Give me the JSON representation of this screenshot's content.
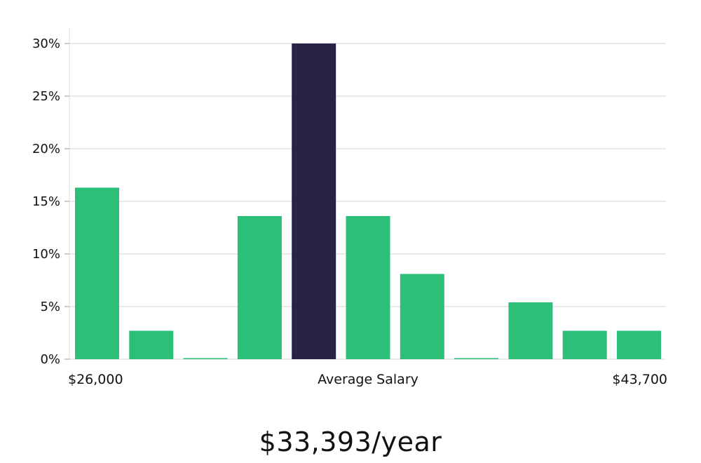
{
  "chart_data": {
    "type": "bar",
    "title": "$33,393/year",
    "xlabel": "Average Salary",
    "x_range_labels": {
      "min": "$26,000",
      "max": "$43,700"
    },
    "ylabel": "",
    "ylim": [
      0,
      30
    ],
    "y_ticks": [
      0,
      5,
      10,
      15,
      20,
      25,
      30
    ],
    "y_tick_labels": [
      "0%",
      "5%",
      "10%",
      "15%",
      "20%",
      "25%",
      "30%"
    ],
    "grid": true,
    "values": [
      16.3,
      2.7,
      0,
      13.6,
      30.0,
      13.6,
      8.1,
      0,
      5.4,
      2.7,
      2.7
    ],
    "highlight_index": 4,
    "colors": {
      "bar": "#2bbf78",
      "highlight": "#272446",
      "grid": "#e3e3e3",
      "axis": "#dddddd"
    }
  }
}
